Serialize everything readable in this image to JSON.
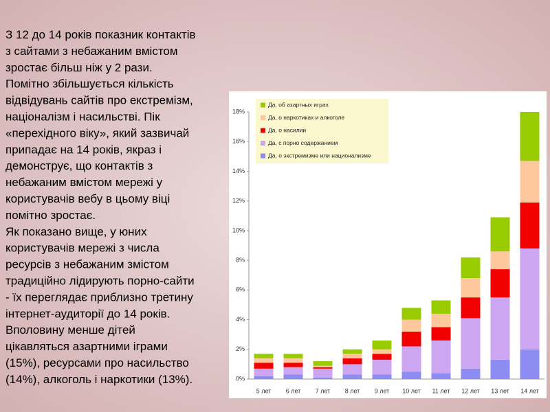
{
  "text_lines": [
    "З 12 до 14 років показник контактів",
    "з сайтами з небажаним вмістом",
    "зростає більш ніж у 2 рази.",
    "Помітно збільшується кількість",
    "відвідувань сайтів про екстремізм,",
    "націоналізм і насильстві. Пік",
    "«перехідного віку», який зазвичай",
    "припадає на 14 років, якраз і",
    "демонструє, що контактів з",
    "небажаним вмістом мережі у",
    "користувачів вебу в цьому віці",
    "помітно зростає.",
    "Як показано вище, у юних",
    "користувачів мережі з числа",
    "ресурсів з небажаним змістом",
    "традиційно лідирують порно-сайти",
    "- їх переглядає приблизно третину",
    "інтернет-аудиторії до 14 років.",
    "Вполовину менше дітей",
    "цікавляться азартними іграми",
    "(15%), ресурсами про насильство",
    "(14%), алкоголь і наркотики (13%)."
  ],
  "chart_data": {
    "type": "stacked_bar",
    "categories": [
      "5 лет",
      "6 лет",
      "7 лет",
      "8 лет",
      "9 лет",
      "10 лет",
      "11 лет",
      "12 лет",
      "13 лет",
      "14 лет"
    ],
    "series": [
      {
        "name": "Да, о экстремизме или национализме",
        "color": "#8c8cf2",
        "values": [
          0.2,
          0.3,
          0.1,
          0.3,
          0.3,
          0.5,
          0.4,
          0.7,
          1.3,
          2.0
        ]
      },
      {
        "name": "Да, с порно содержанием",
        "color": "#cda6f2",
        "values": [
          0.5,
          0.5,
          0.6,
          0.7,
          1.0,
          1.7,
          2.2,
          3.4,
          4.2,
          6.8
        ]
      },
      {
        "name": "Да, о насилии",
        "color": "#f20000",
        "values": [
          0.4,
          0.3,
          0.1,
          0.4,
          0.4,
          1.0,
          0.9,
          1.4,
          1.9,
          3.1
        ]
      },
      {
        "name": "Да, о наркотиках и алкоголе",
        "color": "#ffc89c",
        "values": [
          0.3,
          0.3,
          0.1,
          0.3,
          0.3,
          0.8,
          0.9,
          1.3,
          1.2,
          2.8
        ]
      },
      {
        "name": "Да, об азартных играх",
        "color": "#99cc00",
        "values": [
          0.3,
          0.3,
          0.3,
          0.3,
          0.6,
          0.8,
          0.9,
          1.4,
          2.3,
          3.3
        ]
      }
    ],
    "ylim": [
      0,
      18
    ],
    "yticks": [
      {
        "value": 0,
        "label": "0%"
      },
      {
        "value": 2,
        "label": "2%"
      },
      {
        "value": 4,
        "label": "4%"
      },
      {
        "value": 6,
        "label": "6%"
      },
      {
        "value": 8,
        "label": "8%"
      },
      {
        "value": 10,
        "label": "10%"
      },
      {
        "value": 12,
        "label": "12%"
      },
      {
        "value": 14,
        "label": "14%"
      },
      {
        "value": 16,
        "label": "16%"
      },
      {
        "value": 18,
        "label": "18%"
      }
    ]
  }
}
